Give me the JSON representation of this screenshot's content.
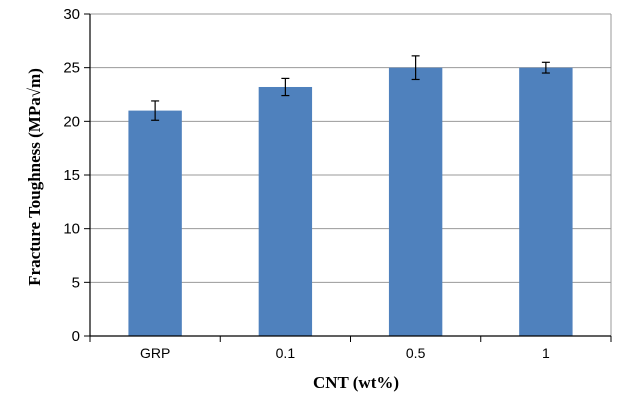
{
  "chart_data": {
    "type": "bar",
    "categories": [
      "GRP",
      "0.1",
      "0.5",
      "1"
    ],
    "series": [
      {
        "values": [
          21.0,
          23.2,
          25.0,
          25.0
        ],
        "errors": [
          0.9,
          0.8,
          1.1,
          0.5
        ],
        "color": "#4f81bd"
      }
    ],
    "xlabel": "CNT (wt%)",
    "ylabel": "Fracture Toughness (MPa√m)",
    "ylim": [
      0,
      30
    ],
    "yticks": [
      0,
      5,
      10,
      15,
      20,
      25,
      30
    ],
    "grid": true,
    "legend": "none"
  }
}
